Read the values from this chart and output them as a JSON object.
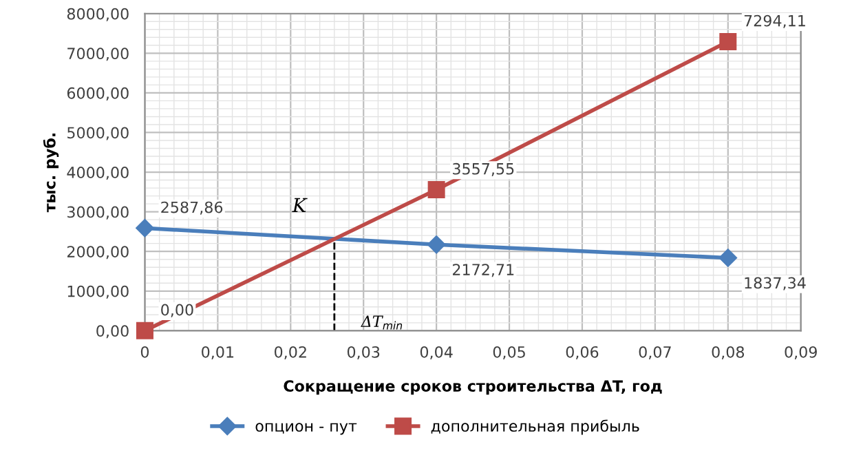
{
  "chart_data": {
    "type": "line",
    "xlabel": "Сокращение сроков строительства ΔT, год",
    "ylabel": "тыс. руб.",
    "series": [
      {
        "name": "опцион - пут",
        "color": "#4a7ebb",
        "marker": "diamond",
        "x": [
          0,
          0.04,
          0.08
        ],
        "values": [
          2587.86,
          2172.71,
          1837.34
        ],
        "value_labels": [
          "2587,86",
          "2172,71",
          "1837,34"
        ]
      },
      {
        "name": "дополнительная прибыль",
        "color": "#be4b48",
        "marker": "square",
        "x": [
          0,
          0.04,
          0.08
        ],
        "values": [
          0.0,
          3557.55,
          7294.11
        ],
        "value_labels": [
          "0,00",
          "3557,55",
          "7294,11"
        ]
      }
    ],
    "xlim": [
      0,
      0.09
    ],
    "xticks": [
      {
        "value": 0,
        "label": "0"
      },
      {
        "value": 0.01,
        "label": "0,01"
      },
      {
        "value": 0.02,
        "label": "0,02"
      },
      {
        "value": 0.03,
        "label": "0,03"
      },
      {
        "value": 0.04,
        "label": "0,04"
      },
      {
        "value": 0.05,
        "label": "0,05"
      },
      {
        "value": 0.06,
        "label": "0,06"
      },
      {
        "value": 0.07,
        "label": "0,07"
      },
      {
        "value": 0.08,
        "label": "0,08"
      },
      {
        "value": 0.09,
        "label": "0,09"
      }
    ],
    "ylim": [
      0,
      8000
    ],
    "yticks": [
      {
        "value": 0,
        "label": "0,00"
      },
      {
        "value": 1000,
        "label": "1000,00"
      },
      {
        "value": 2000,
        "label": "2000,00"
      },
      {
        "value": 3000,
        "label": "3000,00"
      },
      {
        "value": 4000,
        "label": "4000,00"
      },
      {
        "value": 5000,
        "label": "5000,00"
      },
      {
        "value": 6000,
        "label": "6000,00"
      },
      {
        "value": 7000,
        "label": "7000,00"
      },
      {
        "value": 8000,
        "label": "8000,00"
      }
    ],
    "annotations": [
      {
        "text": "K",
        "x": 0.026,
        "y": 2318
      },
      {
        "text": "ΔT$_{min}$",
        "x": 0.026,
        "y": 0
      }
    ],
    "ref_lines": [
      {
        "axis": "x",
        "value": 0.026,
        "label": null,
        "color": "#000000",
        "line_style": "dashed"
      }
    ],
    "grid": true,
    "legend": "bottom"
  }
}
